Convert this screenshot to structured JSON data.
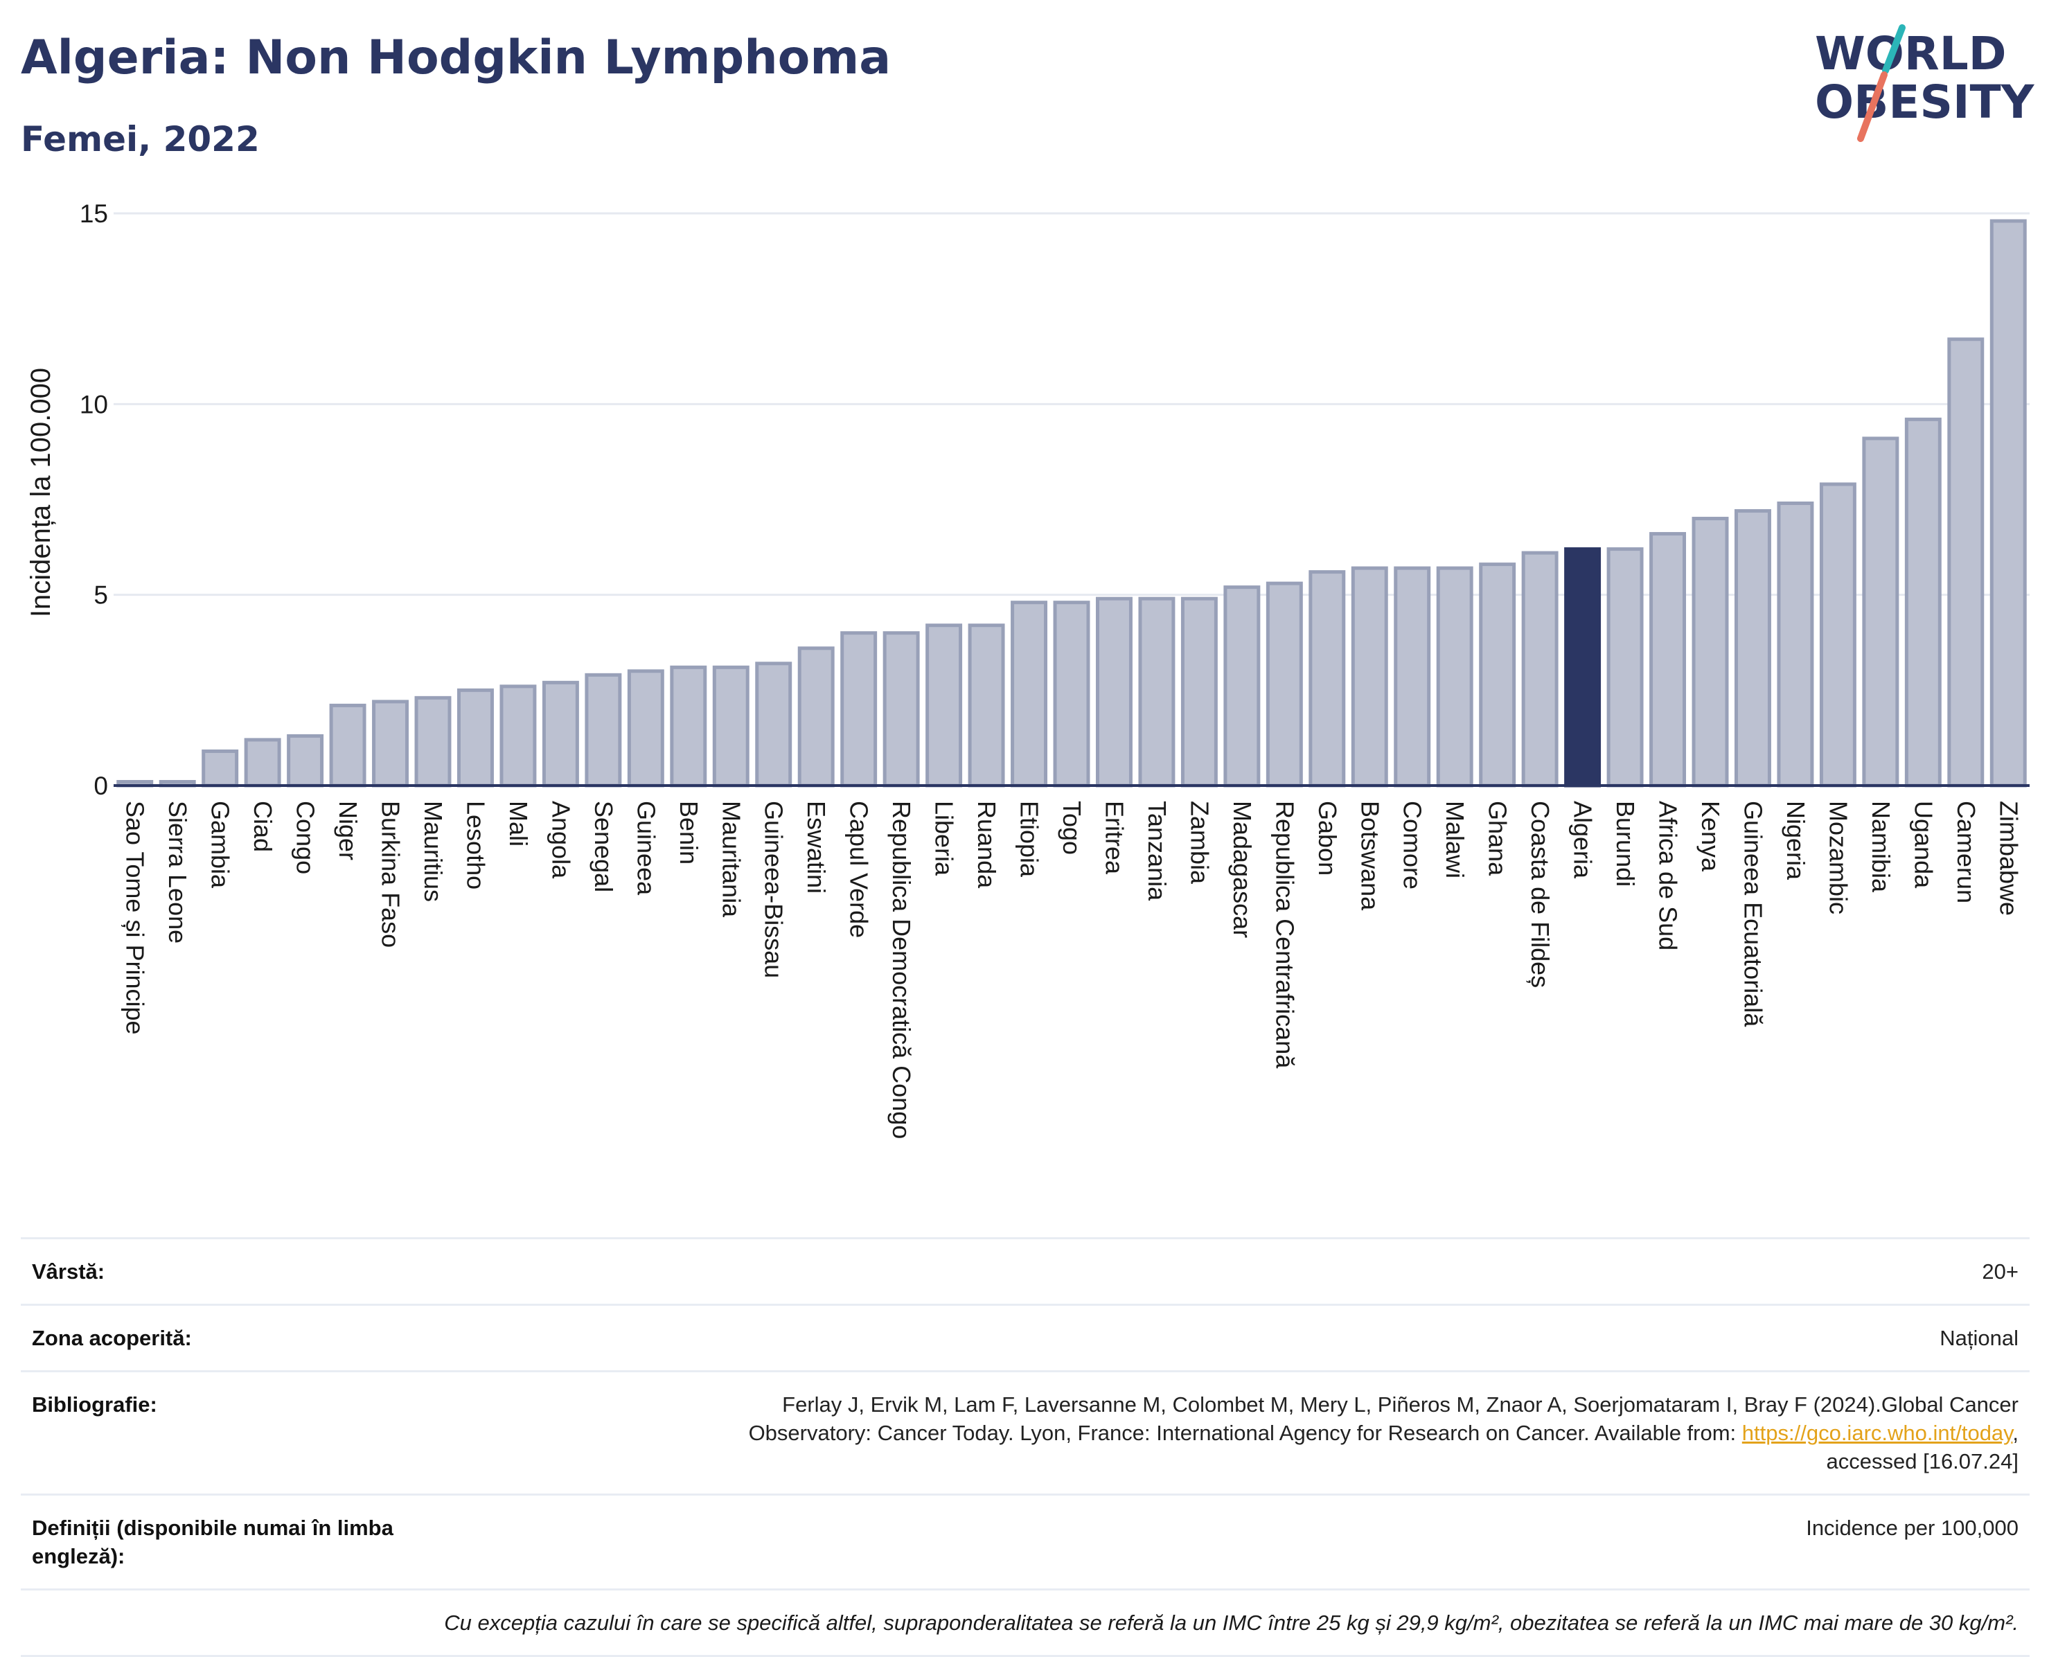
{
  "header": {
    "title": "Algeria: Non Hodgkin Lymphoma",
    "subtitle": "Femei, 2022"
  },
  "logo": {
    "line1": "WORLD",
    "line2": "OBESITY"
  },
  "colors": {
    "bar": "#bcc1d1",
    "bar_stroke": "#98a0b8",
    "highlight": "#2b3663",
    "grid": "#e6e9f0",
    "axis": "#2b3663",
    "logo_text": "#2b3663",
    "logo_slash_teal": "#2bb5b8",
    "logo_slash_coral": "#e8735e",
    "link": "#e3a21a"
  },
  "chart_data": {
    "type": "bar",
    "ylabel": "Incidența la 100.000",
    "ylim": [
      0,
      15
    ],
    "yticks": [
      0,
      5,
      10,
      15
    ],
    "grid": true,
    "highlight": "Algeria",
    "categories": [
      "Sao Tome și Principe",
      "Sierra Leone",
      "Gambia",
      "Ciad",
      "Congo",
      "Niger",
      "Burkina Faso",
      "Mauritius",
      "Lesotho",
      "Mali",
      "Angola",
      "Senegal",
      "Guineea",
      "Benin",
      "Mauritania",
      "Guineea-Bissau",
      "Eswatini",
      "Capul Verde",
      "Republica Democratică Congo",
      "Liberia",
      "Ruanda",
      "Etiopia",
      "Togo",
      "Eritrea",
      "Tanzania",
      "Zambia",
      "Madagascar",
      "Republica Centrafricană",
      "Gabon",
      "Botswana",
      "Comore",
      "Malawi",
      "Ghana",
      "Coasta de Fildeș",
      "Algeria",
      "Burundi",
      "Africa de Sud",
      "Kenya",
      "Guineea Ecuatorială",
      "Nigeria",
      "Mozambic",
      "Namibia",
      "Uganda",
      "Camerun",
      "Zimbabwe"
    ],
    "values": [
      0.1,
      0.1,
      0.9,
      1.2,
      1.3,
      2.1,
      2.2,
      2.3,
      2.5,
      2.6,
      2.7,
      2.9,
      3.0,
      3.1,
      3.1,
      3.2,
      3.6,
      4.0,
      4.0,
      4.2,
      4.2,
      4.8,
      4.8,
      4.9,
      4.9,
      4.9,
      5.2,
      5.3,
      5.6,
      5.7,
      5.7,
      5.7,
      5.8,
      6.1,
      6.2,
      6.2,
      6.6,
      7.0,
      7.2,
      7.4,
      7.9,
      9.1,
      9.6,
      11.7,
      14.8
    ]
  },
  "info": {
    "age_label": "Vârstă:",
    "age_value": "20+",
    "area_label": "Zona acoperită:",
    "area_value": "Național",
    "biblio_label": "Bibliografie:",
    "biblio_line1": "Ferlay J, Ervik M, Lam F, Laversanne M, Colombet M, Mery L, Piñeros M, Znaor A, Soerjomataram I, Bray F (2024).Global Cancer",
    "biblio_line2": "Observatory: Cancer Today. Lyon, France: International Agency for Research on Cancer. Available from: ",
    "biblio_link": "https://gco.iarc.who.int/today",
    "biblio_line2_end": ",",
    "biblio_line3": "accessed [16.07.24]",
    "def_label": "Definiții (disponibile numai în limba engleză):",
    "def_value": "Incidence per 100,000",
    "note": "Cu excepția cazului în care se specifică altfel, supraponderalitatea se referă la un IMC între 25 kg și 29,9 kg/m², obezitatea se referă la un IMC mai mare de 30 kg/m²."
  }
}
